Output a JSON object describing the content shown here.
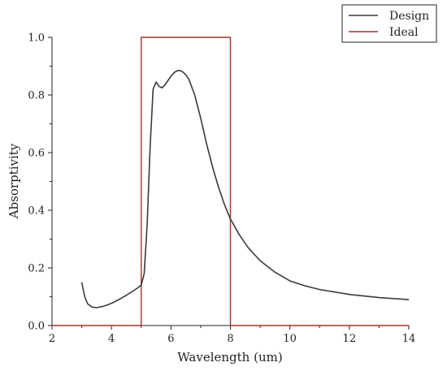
{
  "chart_data": {
    "type": "line",
    "xlabel": "Wavelength (um)",
    "ylabel": "Absorptivity",
    "xlim": [
      2,
      14
    ],
    "ylim": [
      0,
      1.0
    ],
    "x_ticks": [
      "2",
      "4",
      "6",
      "8",
      "10",
      "12",
      "14"
    ],
    "y_ticks": [
      "0.0",
      "0.2",
      "0.4",
      "0.6",
      "0.8",
      "1.0"
    ],
    "grid": false,
    "legend_position": "top-right",
    "series": [
      {
        "name": "Design",
        "color": "#3a3a3a",
        "x": [
          3.0,
          3.1,
          3.2,
          3.35,
          3.5,
          3.7,
          3.9,
          4.1,
          4.3,
          4.5,
          4.7,
          4.9,
          5.0,
          5.1,
          5.2,
          5.3,
          5.4,
          5.5,
          5.6,
          5.7,
          5.8,
          5.9,
          6.0,
          6.1,
          6.2,
          6.3,
          6.4,
          6.5,
          6.6,
          6.8,
          7.0,
          7.2,
          7.4,
          7.6,
          7.8,
          8.0,
          8.3,
          8.6,
          9.0,
          9.5,
          10.0,
          10.5,
          11.0,
          12.0,
          13.0,
          14.0
        ],
        "y": [
          0.15,
          0.1,
          0.075,
          0.064,
          0.062,
          0.066,
          0.073,
          0.082,
          0.093,
          0.105,
          0.118,
          0.132,
          0.14,
          0.18,
          0.35,
          0.62,
          0.82,
          0.845,
          0.83,
          0.825,
          0.835,
          0.85,
          0.865,
          0.877,
          0.884,
          0.885,
          0.88,
          0.87,
          0.855,
          0.8,
          0.72,
          0.63,
          0.55,
          0.48,
          0.42,
          0.37,
          0.315,
          0.27,
          0.225,
          0.185,
          0.155,
          0.138,
          0.125,
          0.108,
          0.097,
          0.09
        ]
      },
      {
        "name": "Ideal",
        "color": "#a4342c",
        "x": [
          2,
          5,
          5,
          8,
          8,
          14
        ],
        "y": [
          0,
          0,
          1,
          1,
          0,
          0
        ]
      }
    ]
  }
}
